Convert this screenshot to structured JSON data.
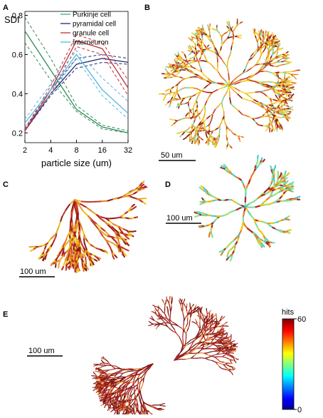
{
  "panel_labels": [
    "A",
    "B",
    "C",
    "D",
    "E"
  ],
  "scale_bars": [
    "50 um",
    "100 um",
    "100 um",
    "100 um"
  ],
  "colorbar": {
    "title": "hits",
    "lim": [
      0,
      60
    ],
    "ticks": [
      0,
      60
    ]
  },
  "chart_data": {
    "type": "line",
    "y_label": "SDI",
    "x_label": "particle size (um)",
    "x": [
      2,
      4,
      8,
      16,
      32
    ],
    "xscale": "log",
    "xlim": [
      2,
      32
    ],
    "xticks": [
      2,
      4,
      8,
      16,
      32
    ],
    "ylim": [
      0.15,
      0.82
    ],
    "yticks": [
      0.2,
      0.4,
      0.6,
      0.8
    ],
    "legend": "upper right",
    "series": [
      {
        "name": "Purkinje cell",
        "color": "#2e8b57",
        "legend_color": "#3aa6a0",
        "values": [
          0.72,
          0.52,
          0.32,
          0.23,
          0.2
        ],
        "upper": [
          0.79,
          0.58,
          0.34,
          0.24,
          0.21
        ],
        "lower": [
          0.66,
          0.47,
          0.31,
          0.22,
          0.2
        ]
      },
      {
        "name": "pyramidal cell",
        "color": "#232a6e",
        "legend_color": "#232a6e",
        "values": [
          0.21,
          0.4,
          0.55,
          0.58,
          0.56
        ],
        "upper": [
          0.22,
          0.42,
          0.58,
          0.6,
          0.58
        ],
        "lower": [
          0.21,
          0.39,
          0.53,
          0.56,
          0.55
        ]
      },
      {
        "name": "granule cell",
        "color": "#c0303a",
        "legend_color": "#c0303a",
        "values": [
          0.21,
          0.42,
          0.67,
          0.63,
          0.43
        ],
        "upper": [
          0.22,
          0.44,
          0.7,
          0.66,
          0.47
        ],
        "lower": [
          0.21,
          0.4,
          0.64,
          0.6,
          0.39
        ]
      },
      {
        "name": "interneuron",
        "color": "#5ab4e0",
        "legend_color": "#5ab4e0",
        "values": [
          0.25,
          0.42,
          0.6,
          0.42,
          0.3
        ],
        "upper": [
          0.27,
          0.45,
          0.62,
          0.48,
          0.36
        ],
        "lower": [
          0.23,
          0.4,
          0.58,
          0.39,
          0.27
        ]
      }
    ]
  }
}
